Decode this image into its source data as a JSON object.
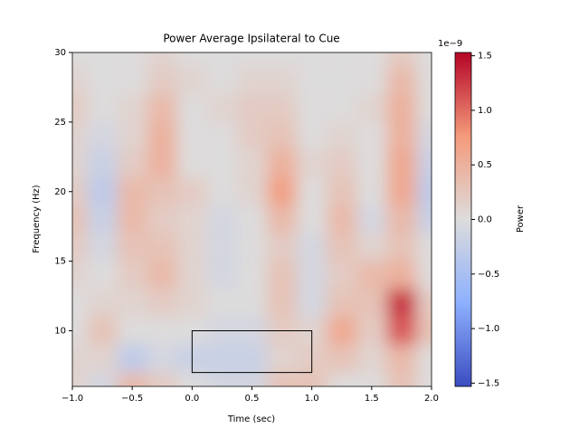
{
  "chart_data": {
    "type": "heatmap",
    "title": "Power Average Ipsilateral to Cue",
    "x_label": "Time (sec)",
    "y_label": "Frequency (Hz)",
    "colorbar_label": "Power",
    "colorbar_offset": "1e−9",
    "x": [
      -1,
      -0.75,
      -0.5,
      -0.25,
      0,
      0.25,
      0.5,
      0.75,
      1,
      1.25,
      1.5,
      1.75,
      2
    ],
    "y": [
      6,
      8,
      10,
      12,
      14,
      16,
      18,
      20,
      22,
      24,
      26,
      28,
      30
    ],
    "z": [
      [
        0.1,
        -0.1,
        0.4,
        0.2,
        0,
        -0.1,
        -0.1,
        0.3,
        0.3,
        0,
        0,
        0.3,
        0
      ],
      [
        0.1,
        0.1,
        -0.3,
        -0.1,
        -0.2,
        -0.2,
        -0.2,
        0.1,
        0.2,
        0.3,
        0.1,
        0.4,
        0
      ],
      [
        0,
        0.3,
        0,
        0,
        0,
        -0.1,
        -0.1,
        0.2,
        0.1,
        0.6,
        0.2,
        1.1,
        0.3
      ],
      [
        0,
        0.1,
        0.1,
        0.2,
        0.1,
        0,
        0,
        0.3,
        -0.1,
        0.3,
        0.3,
        1.3,
        0.2
      ],
      [
        0.1,
        0,
        0.2,
        0.4,
        0.1,
        -0.1,
        0,
        0.3,
        -0.1,
        0.2,
        0.4,
        0.5,
        0
      ],
      [
        0.2,
        -0.1,
        0.3,
        0.3,
        0.1,
        -0.1,
        0,
        0.2,
        -0.1,
        0.3,
        0.1,
        0.3,
        0
      ],
      [
        0.3,
        -0.2,
        0.4,
        0.2,
        0.1,
        -0.1,
        0,
        0.4,
        0,
        0.4,
        -0.1,
        0.4,
        -0.2
      ],
      [
        0.2,
        -0.3,
        0.4,
        0.3,
        0.2,
        0,
        0.1,
        0.7,
        0,
        0.3,
        0,
        0.6,
        -0.3
      ],
      [
        0.1,
        -0.2,
        0.2,
        0.5,
        0,
        0,
        0.1,
        0.5,
        0.1,
        0.2,
        0,
        0.6,
        -0.2
      ],
      [
        0.1,
        -0.1,
        0.1,
        0.5,
        0,
        0,
        0.2,
        0.3,
        0,
        0.1,
        0,
        0.5,
        -0.1
      ],
      [
        0.2,
        0,
        0.1,
        0.4,
        0,
        0.1,
        0.2,
        0.2,
        0,
        0,
        0.1,
        0.5,
        0
      ],
      [
        0.1,
        0,
        0,
        0.2,
        0.1,
        0,
        0.1,
        0.1,
        0,
        0,
        0,
        0.4,
        0
      ],
      [
        0,
        0,
        0,
        0.1,
        0,
        0,
        0,
        0,
        0,
        0,
        0,
        0.2,
        0
      ]
    ],
    "xlim": [
      -1,
      2
    ],
    "ylim": [
      6,
      30
    ],
    "zlim": [
      -1.53,
      1.53
    ],
    "xticks": [
      {
        "value": -1,
        "label": "−1.0"
      },
      {
        "value": -0.5,
        "label": "−0.5"
      },
      {
        "value": 0,
        "label": "0.0"
      },
      0.5,
      {
        "value": 1,
        "label": "1.0"
      },
      1.5,
      {
        "value": 2,
        "label": "2.0"
      }
    ],
    "yticks": [
      10,
      15,
      20,
      25,
      30
    ],
    "zticks": [
      {
        "value": -1.5,
        "label": "−1.5"
      },
      {
        "value": -1,
        "label": "−1.0"
      },
      {
        "value": -0.5,
        "label": "−0.5"
      },
      {
        "value": 0,
        "label": "0.0"
      },
      0.5,
      {
        "value": 1,
        "label": "1.0"
      },
      1.5
    ],
    "colormap": [
      "#3b4cc0",
      "#8db0fe",
      "#dddcdc",
      "#f49a7b",
      "#b40426"
    ],
    "annotation_box": {
      "x": [
        0,
        1
      ],
      "y": [
        7,
        10
      ]
    }
  }
}
